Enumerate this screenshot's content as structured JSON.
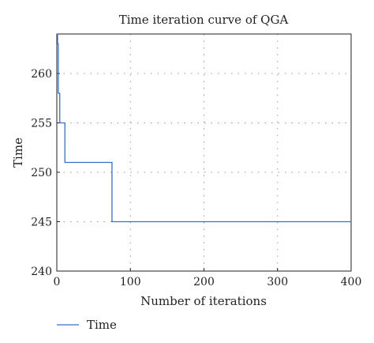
{
  "chart_data": {
    "type": "line",
    "title": "Time iteration curve of QGA",
    "xlabel": "Number of iterations",
    "ylabel": "Time",
    "xlim": [
      0,
      400
    ],
    "ylim": [
      240,
      264
    ],
    "xticks": [
      0,
      100,
      200,
      300,
      400
    ],
    "yticks": [
      240,
      245,
      250,
      255,
      260
    ],
    "grid": true,
    "legend_position": "bottom-left",
    "series": [
      {
        "name": "Time",
        "color": "#3a6fc4",
        "x": [
          0,
          1,
          1,
          2,
          2,
          4,
          4,
          6,
          6,
          11,
          11,
          75,
          75,
          400
        ],
        "y": [
          264,
          264,
          263,
          263,
          258,
          258,
          255,
          255,
          255,
          255,
          251,
          251,
          245,
          245
        ]
      }
    ]
  }
}
